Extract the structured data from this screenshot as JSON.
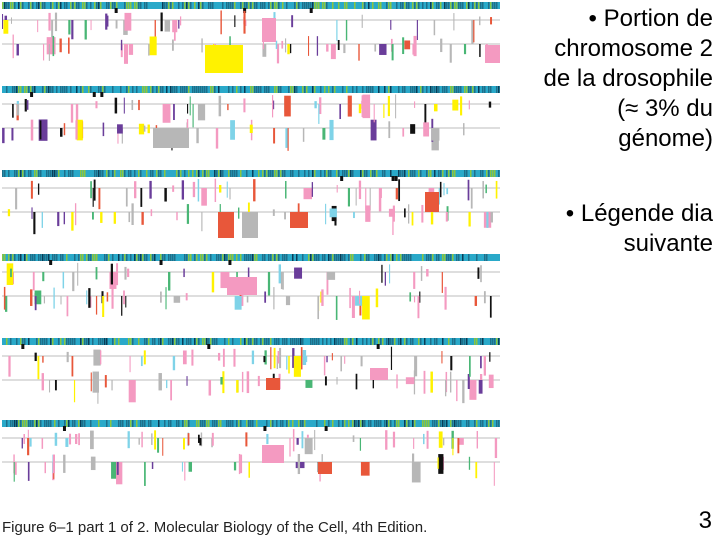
{
  "slide": {
    "bullets": [
      {
        "marker": "•",
        "lines": [
          "Portion de",
          "chromosome 2",
          "de la drosophile",
          "(≈ 3% du",
          "génome)"
        ]
      },
      {
        "marker": "•",
        "lines": [
          "Légende dia",
          "suivante"
        ]
      }
    ],
    "page_number": "3"
  },
  "figure": {
    "caption": "Figure 6–1 part 1 of 2. Molecular Biology of the Cell, 4th Edition.",
    "colors": {
      "gc_bar_teal": "#2aa9c9",
      "gc_bar_dark": "#1f6f8a",
      "gc_bar_green": "#8cc63f",
      "axis_line": "#bdbdbd",
      "pink": "#f49ac1",
      "yellow": "#fff200",
      "orange_red": "#e8573a",
      "gray": "#b7b7b7",
      "purple": "#6a3d9a",
      "light_blue": "#7fd3e8",
      "green": "#49b675",
      "black": "#111111"
    },
    "rows": 6
  }
}
